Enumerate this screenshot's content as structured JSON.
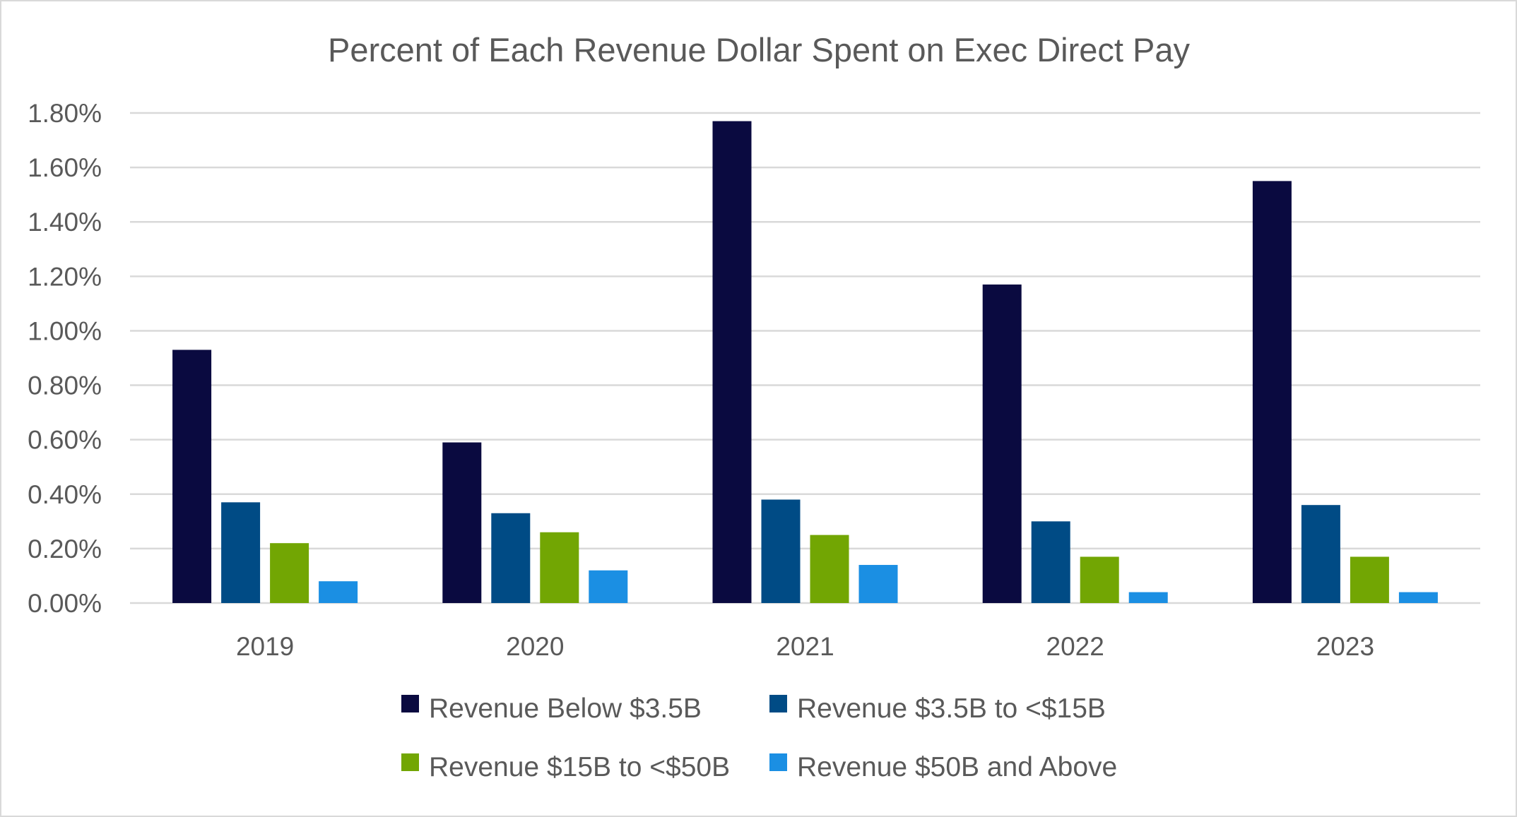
{
  "chart_data": {
    "type": "bar",
    "title": "Percent of Each Revenue Dollar Spent on Exec Direct Pay",
    "xlabel": "",
    "ylabel": "",
    "categories": [
      "2019",
      "2020",
      "2021",
      "2022",
      "2023"
    ],
    "ylim": [
      0,
      1.8
    ],
    "yticks": [
      0,
      0.2,
      0.4,
      0.6,
      0.8,
      1.0,
      1.2,
      1.4,
      1.6,
      1.8
    ],
    "ytick_labels": [
      "0.00%",
      "0.20%",
      "0.40%",
      "0.60%",
      "0.80%",
      "1.00%",
      "1.20%",
      "1.40%",
      "1.60%",
      "1.80%"
    ],
    "grid": true,
    "legend_position": "bottom",
    "series": [
      {
        "name": "Revenue Below $3.5B",
        "color": "#0a0a40",
        "values": [
          0.93,
          0.59,
          1.77,
          1.17,
          1.55
        ]
      },
      {
        "name": "Revenue $3.5B to <$15B",
        "color": "#004b85",
        "values": [
          0.37,
          0.33,
          0.38,
          0.3,
          0.36
        ]
      },
      {
        "name": "Revenue $15B to <$50B",
        "color": "#72a603",
        "values": [
          0.22,
          0.26,
          0.25,
          0.17,
          0.17
        ]
      },
      {
        "name": "Revenue $50B and Above",
        "color": "#1b8fe3",
        "values": [
          0.08,
          0.12,
          0.14,
          0.04,
          0.04
        ]
      }
    ]
  }
}
